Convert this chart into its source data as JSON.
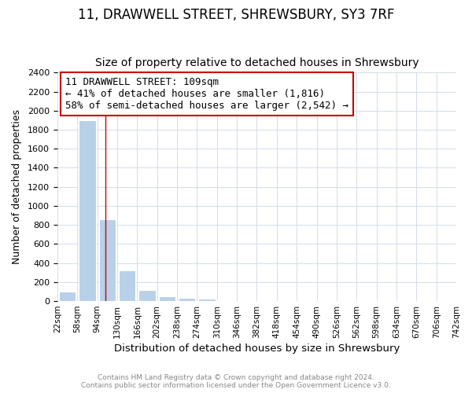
{
  "title": "11, DRAWWELL STREET, SHREWSBURY, SY3 7RF",
  "subtitle": "Size of property relative to detached houses in Shrewsbury",
  "xlabel": "Distribution of detached houses by size in Shrewsbury",
  "ylabel": "Number of detached properties",
  "annotation_line1": "11 DRAWWELL STREET: 109sqm",
  "annotation_line2": "← 41% of detached houses are smaller (1,816)",
  "annotation_line3": "58% of semi-detached houses are larger (2,542) →",
  "property_size_sqm": 109,
  "bar_color": "#b8d0e8",
  "annotation_line_color": "#cc0000",
  "footer_line1": "Contains HM Land Registry data © Crown copyright and database right 2024.",
  "footer_line2": "Contains public sector information licensed under the Open Government Licence v3.0.",
  "bins": [
    22,
    58,
    94,
    130,
    166,
    202,
    238,
    274,
    310,
    346,
    382,
    418,
    454,
    490,
    526,
    562,
    598,
    634,
    670,
    706,
    742
  ],
  "counts": [
    100,
    1900,
    860,
    320,
    120,
    50,
    30,
    25,
    0,
    0,
    0,
    0,
    0,
    0,
    0,
    0,
    0,
    0,
    0,
    0
  ],
  "ylim": [
    0,
    2400
  ],
  "yticks": [
    0,
    200,
    400,
    600,
    800,
    1000,
    1200,
    1400,
    1600,
    1800,
    2000,
    2200,
    2400
  ],
  "grid_color": "#d4dce8",
  "title_fontsize": 12,
  "subtitle_fontsize": 10
}
